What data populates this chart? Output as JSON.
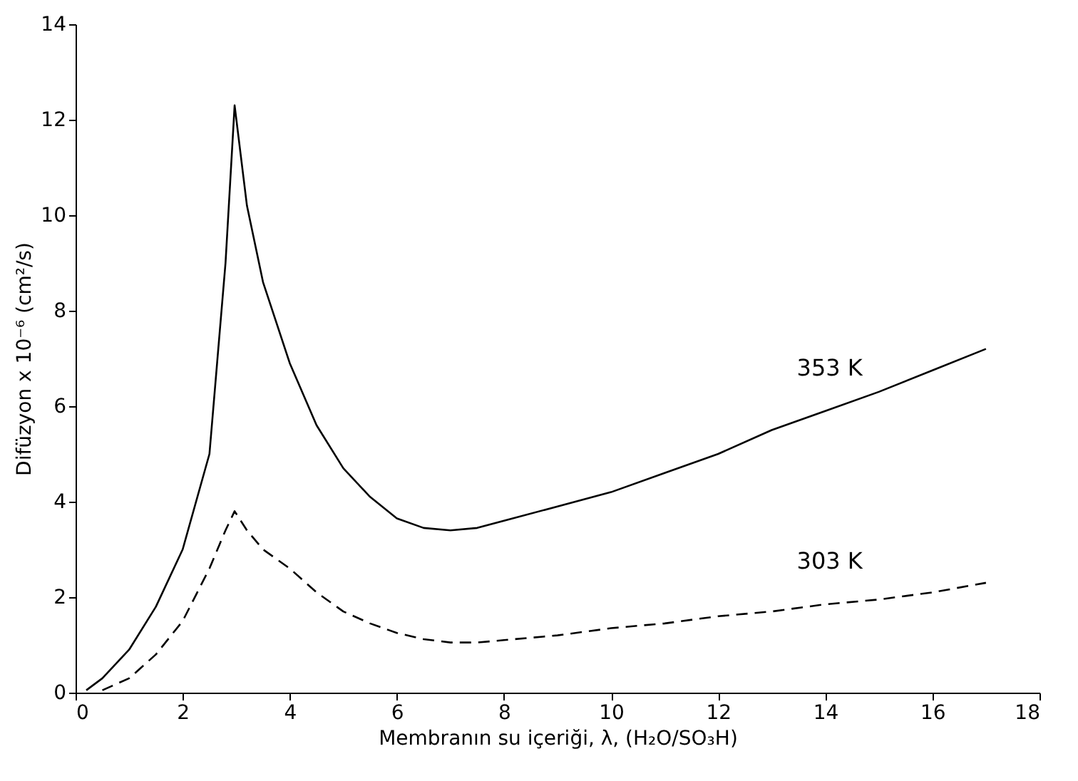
{
  "chart_data": {
    "type": "line",
    "xlabel": "Membranın su içeriği, λ, (H₂O/SO₃H)",
    "ylabel": "Difüzyon x 10⁻⁶ (cm²/s)",
    "xlim": [
      0,
      18
    ],
    "xticks": [
      0,
      2,
      4,
      6,
      8,
      10,
      12,
      14,
      16,
      18
    ],
    "ylim": [
      0,
      14
    ],
    "yticks": [
      0,
      2,
      4,
      6,
      8,
      10,
      12,
      14
    ],
    "grid": false,
    "marker": "none",
    "series": [
      {
        "name": "353 K",
        "color": "#000000",
        "line_style": "solid",
        "x": [
          0.2,
          0.5,
          1,
          1.5,
          2,
          2.5,
          2.8,
          2.97,
          3.2,
          3.5,
          4,
          4.5,
          5,
          5.5,
          6,
          6.5,
          7,
          7.5,
          8,
          9,
          10,
          11,
          12,
          13,
          14,
          15,
          16,
          17
        ],
        "values": [
          0.05,
          0.3,
          0.9,
          1.8,
          3.0,
          5.0,
          9.0,
          12.3,
          10.2,
          8.6,
          6.9,
          5.6,
          4.7,
          4.1,
          3.65,
          3.45,
          3.4,
          3.45,
          3.6,
          3.9,
          4.2,
          4.6,
          5.0,
          5.5,
          5.9,
          6.3,
          6.75,
          7.2
        ]
      },
      {
        "name": "303 K",
        "color": "#000000",
        "line_style": "dashed",
        "x": [
          0.5,
          1,
          1.5,
          2,
          2.5,
          2.8,
          2.97,
          3.2,
          3.5,
          4,
          4.5,
          5,
          5.5,
          6,
          6.5,
          7,
          7.5,
          8,
          9,
          10,
          11,
          12,
          13,
          14,
          15,
          16,
          17
        ],
        "values": [
          0.05,
          0.3,
          0.8,
          1.5,
          2.6,
          3.4,
          3.8,
          3.4,
          3.0,
          2.6,
          2.1,
          1.7,
          1.45,
          1.25,
          1.12,
          1.05,
          1.05,
          1.1,
          1.2,
          1.35,
          1.45,
          1.6,
          1.7,
          1.85,
          1.95,
          2.1,
          2.3
        ]
      }
    ]
  }
}
